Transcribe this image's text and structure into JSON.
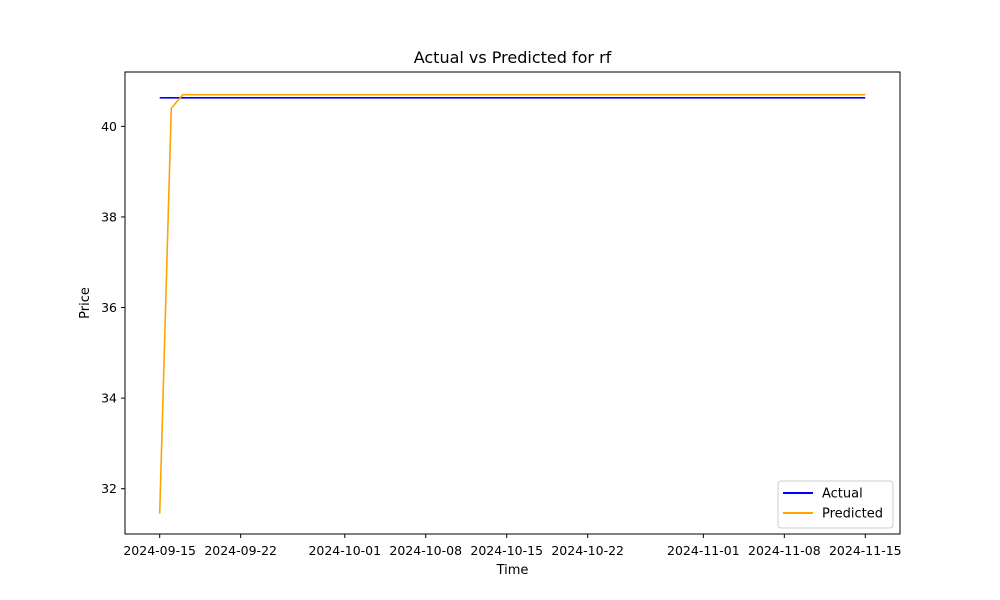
{
  "chart_data": {
    "type": "line",
    "title": "Actual vs Predicted for rf",
    "xlabel": "Time",
    "ylabel": "Price",
    "x_ticks": [
      "2024-09-15",
      "2024-09-22",
      "2024-10-01",
      "2024-10-08",
      "2024-10-15",
      "2024-10-22",
      "2024-11-01",
      "2024-11-08",
      "2024-11-15"
    ],
    "y_ticks": [
      32,
      34,
      36,
      38,
      40
    ],
    "xlim": [
      "2024-09-12",
      "2024-11-18"
    ],
    "ylim": [
      31.0,
      41.2
    ],
    "grid": false,
    "legend_position": "lower-right",
    "series": [
      {
        "name": "Actual",
        "color": "#0000ff",
        "points": [
          [
            "2024-09-15",
            40.63
          ],
          [
            "2024-11-15",
            40.63
          ]
        ]
      },
      {
        "name": "Predicted",
        "color": "#ffa500",
        "points": [
          [
            "2024-09-15",
            31.45
          ],
          [
            "2024-09-16",
            40.4
          ],
          [
            "2024-09-17",
            40.7
          ],
          [
            "2024-11-15",
            40.7
          ]
        ]
      }
    ]
  }
}
